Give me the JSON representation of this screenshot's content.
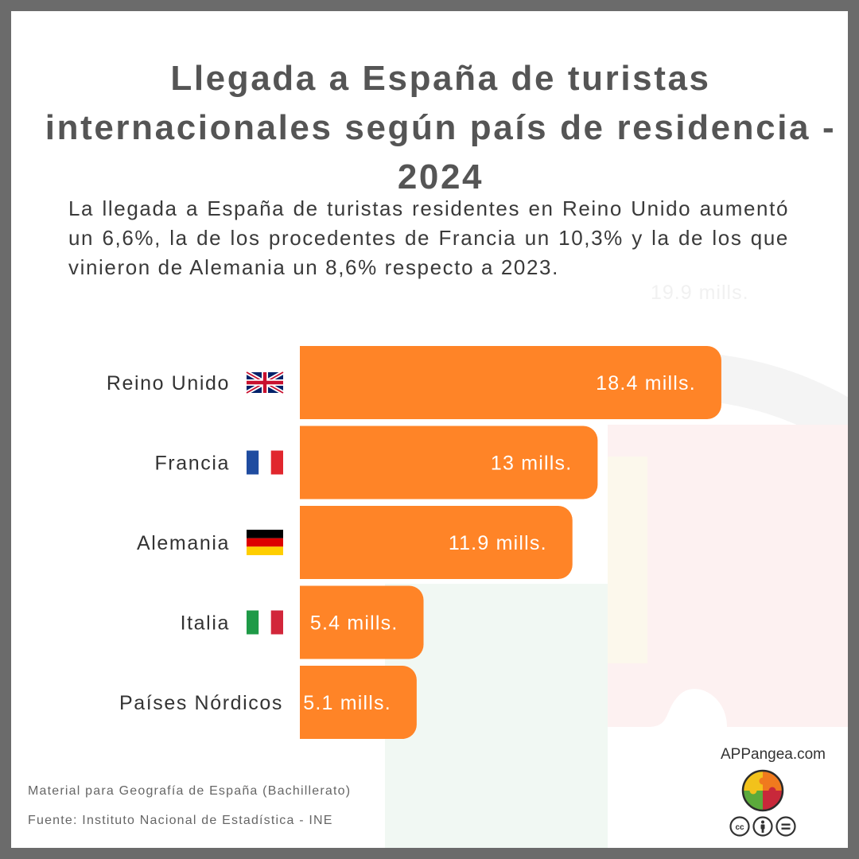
{
  "header": {
    "title": "Llegada a España de turistas internacionales según país de residencia - 2024",
    "subtitle": "La llegada a España de turistas residentes en Reino Unido aumentó un 6,6%, la de los procedentes de Francia un 10,3% y la de los que vinieron de Alemania un 8,6% respecto a 2023.",
    "ghost_label": "19.9 mills."
  },
  "chart_data": {
    "type": "bar",
    "orientation": "horizontal",
    "categories": [
      "Reino Unido",
      "Francia",
      "Alemania",
      "Italia",
      "Países Nórdicos"
    ],
    "values": [
      18.4,
      13,
      11.9,
      5.4,
      5.1
    ],
    "value_labels": [
      "18.4 mills.",
      "13 mills.",
      "11.9 mills.",
      "5.4 mills.",
      "5.1 mills."
    ],
    "flags": [
      "uk-flag-icon",
      "france-flag-icon",
      "germany-flag-icon",
      "italy-flag-icon",
      ""
    ],
    "unit": "mills.",
    "title": "Llegada a España de turistas internacionales según país de residencia - 2024",
    "xlabel": "",
    "ylabel": "",
    "grid": false,
    "bar_color": "#FF8427",
    "label_color": "#FFFFFF"
  },
  "footer": {
    "material": "Material para Geografía de España (Bachillerato)",
    "source": "Fuente: Instituto Nacional de Estadística - INE"
  },
  "brand": {
    "site": "APPangea.com",
    "logo": "appangea-puzzle-logo",
    "license_icons": [
      "cc-icon",
      "by-icon",
      "nd-icon"
    ]
  },
  "colors": {
    "frame": "#6B6B6B",
    "title": "#555555",
    "bar": "#FF8427",
    "logo_yellow": "#F2C21B",
    "logo_orange": "#F07A1E",
    "logo_green": "#5BAA3B",
    "logo_red": "#C8283A"
  }
}
